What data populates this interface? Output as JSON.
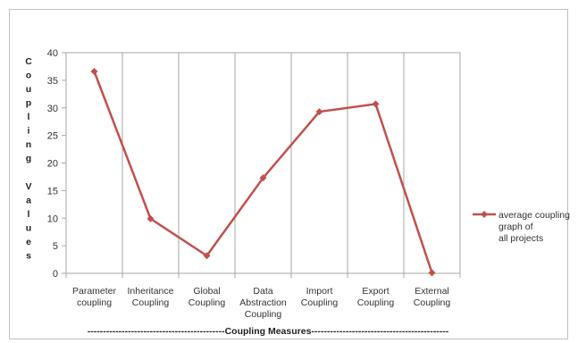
{
  "chart_data": {
    "type": "line",
    "categories": [
      [
        "Parameter",
        "coupling"
      ],
      [
        "Inheritance",
        "Coupling"
      ],
      [
        "Global",
        "Coupling"
      ],
      [
        "Data",
        "Abstraction",
        "Coupling"
      ],
      [
        "Import",
        "Coupling"
      ],
      [
        "Export",
        "Coupling"
      ],
      [
        "External",
        "Coupling"
      ]
    ],
    "series": [
      {
        "name": "average coupling graph of all projects",
        "values": [
          36.6,
          9.9,
          3.2,
          17.3,
          29.3,
          30.7,
          0.1
        ],
        "color": "#c0504d"
      }
    ],
    "ylim": [
      0,
      40
    ],
    "yticks": [
      0,
      5,
      10,
      15,
      20,
      25,
      30,
      35,
      40
    ],
    "ylabel_words": [
      "Coupling",
      "Values"
    ],
    "xlabel": "--------------------------------------------Coupling  Measures--------------------------------------------",
    "grid": "vertical",
    "legend_position": "right"
  }
}
